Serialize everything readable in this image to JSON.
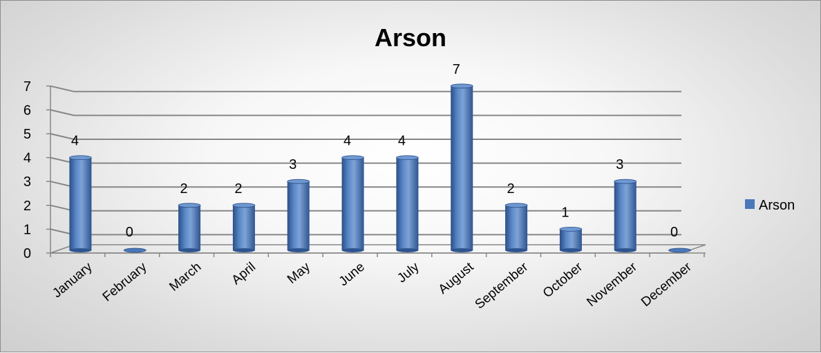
{
  "chart_data": {
    "type": "bar",
    "title": "Arson",
    "xlabel": "",
    "ylabel": "",
    "categories": [
      "January",
      "February",
      "March",
      "April",
      "May",
      "June",
      "July",
      "August",
      "September",
      "October",
      "November",
      "December"
    ],
    "series": [
      {
        "name": "Arson",
        "values": [
          4,
          0,
          2,
          2,
          3,
          4,
          4,
          7,
          2,
          1,
          3,
          0
        ]
      }
    ],
    "ylim": [
      0,
      7
    ],
    "yticks": [
      0,
      1,
      2,
      3,
      4,
      5,
      6,
      7
    ],
    "grid": true,
    "data_labels": true,
    "legend_position": "right",
    "colors": {
      "bar": "#4a78b8",
      "bar_dark": "#2a4f86",
      "bar_light": "#7ea3d6",
      "grid": "#868686"
    }
  }
}
